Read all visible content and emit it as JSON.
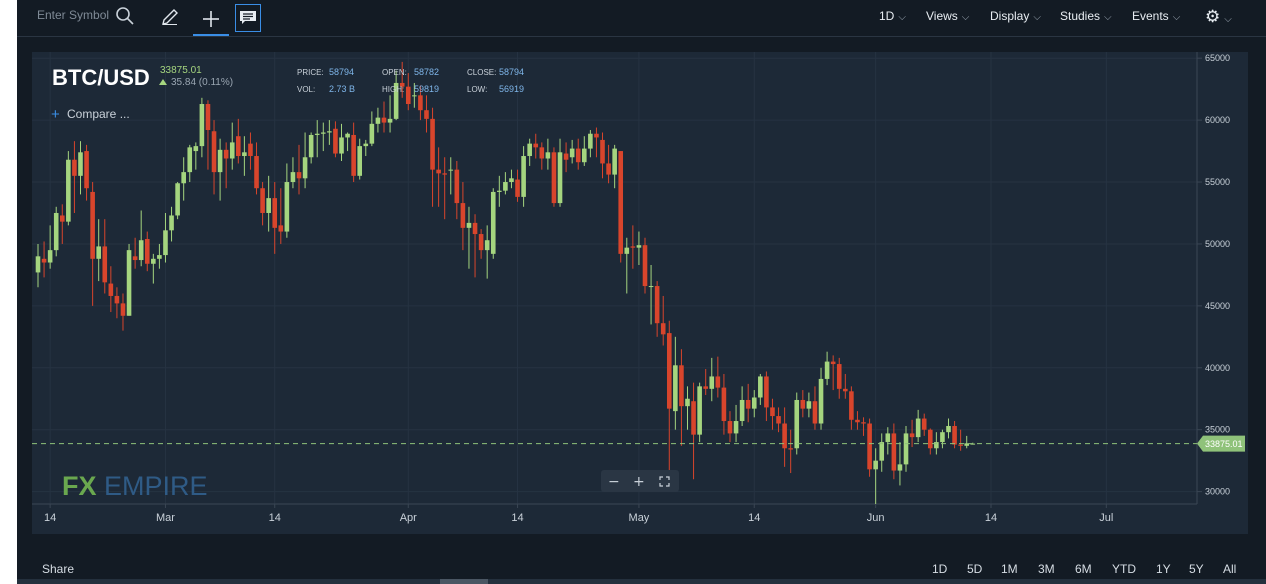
{
  "toolbar": {
    "search_placeholder": "Enter Symbol",
    "menus": [
      "1D",
      "Views",
      "Display",
      "Studies",
      "Events"
    ]
  },
  "header": {
    "symbol": "BTC/USD",
    "last_price": "33875.01",
    "change": "35.84 (0.11%)",
    "compare_label": "Compare ...",
    "stats": {
      "price_label": "PRICE:",
      "price": "58794",
      "vol_label": "VOL:",
      "vol": "2.73 B",
      "open_label": "OPEN:",
      "open": "58782",
      "high_label": "HIGH:",
      "high": "59819",
      "close_label": "CLOSE:",
      "close": "58794",
      "low_label": "LOW:",
      "low": "56919"
    }
  },
  "watermark": {
    "fx": "FX",
    "empire": "EMPIRE"
  },
  "footer": {
    "share_label": "Share",
    "ranges": [
      "1D",
      "5D",
      "1M",
      "3M",
      "6M",
      "YTD",
      "1Y",
      "5Y",
      "All"
    ]
  },
  "colors": {
    "up": "#a5d57f",
    "down": "#d8452c",
    "price_line": "#8fc27a",
    "background": "#1d2937"
  },
  "chart_data": {
    "type": "candlestick",
    "x_tick_labels": [
      "14",
      "Mar",
      "14",
      "Apr",
      "14",
      "May",
      "14",
      "Jun",
      "14",
      "Jul"
    ],
    "y_ticks": [
      30000,
      35000,
      40000,
      45000,
      50000,
      55000,
      60000,
      65000
    ],
    "ylim": [
      29000,
      65500
    ],
    "current_price": 33875.01,
    "current_price_label": "33875.01",
    "grid": true,
    "candles": [
      {
        "o": 47700,
        "c": 49000,
        "h": 50000,
        "l": 46500
      },
      {
        "o": 48800,
        "c": 48500,
        "h": 50200,
        "l": 47300
      },
      {
        "o": 48500,
        "c": 49500,
        "h": 51500,
        "l": 48000
      },
      {
        "o": 49500,
        "c": 52500,
        "h": 53000,
        "l": 49000
      },
      {
        "o": 52300,
        "c": 51800,
        "h": 53200,
        "l": 50000
      },
      {
        "o": 51800,
        "c": 56800,
        "h": 57500,
        "l": 51500
      },
      {
        "o": 56800,
        "c": 55500,
        "h": 58300,
        "l": 52500
      },
      {
        "o": 55500,
        "c": 57400,
        "h": 58300,
        "l": 54000
      },
      {
        "o": 57500,
        "c": 54500,
        "h": 58000,
        "l": 53500
      },
      {
        "o": 54200,
        "c": 48800,
        "h": 55000,
        "l": 45000
      },
      {
        "o": 48800,
        "c": 49800,
        "h": 52000,
        "l": 47000
      },
      {
        "o": 49800,
        "c": 46900,
        "h": 52000,
        "l": 46000
      },
      {
        "o": 46800,
        "c": 45800,
        "h": 48200,
        "l": 44500
      },
      {
        "o": 45800,
        "c": 45200,
        "h": 46500,
        "l": 44000
      },
      {
        "o": 45200,
        "c": 44200,
        "h": 46000,
        "l": 43000
      },
      {
        "o": 44200,
        "c": 49500,
        "h": 50000,
        "l": 44200
      },
      {
        "o": 49000,
        "c": 48700,
        "h": 50500,
        "l": 48000
      },
      {
        "o": 48700,
        "c": 50300,
        "h": 52700,
        "l": 48200
      },
      {
        "o": 50400,
        "c": 48400,
        "h": 51000,
        "l": 47800
      },
      {
        "o": 48400,
        "c": 48800,
        "h": 49200,
        "l": 46800
      },
      {
        "o": 48800,
        "c": 49100,
        "h": 50000,
        "l": 48000
      },
      {
        "o": 49100,
        "c": 51100,
        "h": 52500,
        "l": 48500
      },
      {
        "o": 51100,
        "c": 52300,
        "h": 53000,
        "l": 50200
      },
      {
        "o": 52300,
        "c": 54900,
        "h": 55000,
        "l": 52000
      },
      {
        "o": 54900,
        "c": 55800,
        "h": 57000,
        "l": 53500
      },
      {
        "o": 55800,
        "c": 57800,
        "h": 58000,
        "l": 55000
      },
      {
        "o": 57500,
        "c": 57900,
        "h": 58200,
        "l": 56000
      },
      {
        "o": 57900,
        "c": 61300,
        "h": 61800,
        "l": 57000
      },
      {
        "o": 61300,
        "c": 59200,
        "h": 61600,
        "l": 56000
      },
      {
        "o": 59100,
        "c": 55800,
        "h": 60000,
        "l": 54000
      },
      {
        "o": 55800,
        "c": 57600,
        "h": 58500,
        "l": 53500
      },
      {
        "o": 57600,
        "c": 56900,
        "h": 58200,
        "l": 54500
      },
      {
        "o": 56900,
        "c": 58200,
        "h": 59800,
        "l": 56000
      },
      {
        "o": 58700,
        "c": 57100,
        "h": 60100,
        "l": 56500
      },
      {
        "o": 57100,
        "c": 57400,
        "h": 58700,
        "l": 55500
      },
      {
        "o": 58100,
        "c": 57100,
        "h": 59000,
        "l": 56000
      },
      {
        "o": 57100,
        "c": 54500,
        "h": 58200,
        "l": 54000
      },
      {
        "o": 54500,
        "c": 52500,
        "h": 55000,
        "l": 51500
      },
      {
        "o": 52500,
        "c": 53700,
        "h": 55500,
        "l": 51000
      },
      {
        "o": 53700,
        "c": 51300,
        "h": 55000,
        "l": 49200
      },
      {
        "o": 51500,
        "c": 51000,
        "h": 54500,
        "l": 50000
      },
      {
        "o": 51000,
        "c": 55000,
        "h": 56500,
        "l": 50500
      },
      {
        "o": 55000,
        "c": 55800,
        "h": 57000,
        "l": 54500
      },
      {
        "o": 55800,
        "c": 55300,
        "h": 58000,
        "l": 54000
      },
      {
        "o": 55300,
        "c": 57000,
        "h": 59000,
        "l": 54500
      },
      {
        "o": 57000,
        "c": 58800,
        "h": 59000,
        "l": 56500
      },
      {
        "o": 58800,
        "c": 58900,
        "h": 60000,
        "l": 57000
      },
      {
        "o": 58900,
        "c": 59000,
        "h": 59800,
        "l": 57500
      },
      {
        "o": 59000,
        "c": 59100,
        "h": 60000,
        "l": 58000
      },
      {
        "o": 59300,
        "c": 57300,
        "h": 59900,
        "l": 57000
      },
      {
        "o": 57300,
        "c": 58600,
        "h": 59700,
        "l": 56700
      },
      {
        "o": 58600,
        "c": 58900,
        "h": 59000,
        "l": 57500
      },
      {
        "o": 58800,
        "c": 55500,
        "h": 59800,
        "l": 55000
      },
      {
        "o": 55500,
        "c": 57900,
        "h": 58500,
        "l": 55200
      },
      {
        "o": 57900,
        "c": 58100,
        "h": 58400,
        "l": 57100
      },
      {
        "o": 58100,
        "c": 59700,
        "h": 60700,
        "l": 57900
      },
      {
        "o": 59700,
        "c": 60200,
        "h": 61000,
        "l": 59000
      },
      {
        "o": 60200,
        "c": 59800,
        "h": 61500,
        "l": 59000
      },
      {
        "o": 59800,
        "c": 60100,
        "h": 62000,
        "l": 59000
      },
      {
        "o": 60100,
        "c": 63000,
        "h": 64000,
        "l": 60000
      },
      {
        "o": 63000,
        "c": 62700,
        "h": 64700,
        "l": 61800
      },
      {
        "o": 62700,
        "c": 61300,
        "h": 63800,
        "l": 60800
      },
      {
        "o": 62000,
        "c": 62000,
        "h": 63000,
        "l": 61000
      },
      {
        "o": 62000,
        "c": 60800,
        "h": 62800,
        "l": 60000
      },
      {
        "o": 60800,
        "c": 60100,
        "h": 62000,
        "l": 59000
      },
      {
        "o": 60100,
        "c": 56000,
        "h": 61000,
        "l": 53000
      },
      {
        "o": 56000,
        "c": 55700,
        "h": 57800,
        "l": 53000
      },
      {
        "o": 55700,
        "c": 55600,
        "h": 57000,
        "l": 52000
      },
      {
        "o": 56000,
        "c": 56000,
        "h": 57000,
        "l": 54000
      },
      {
        "o": 56000,
        "c": 53300,
        "h": 56700,
        "l": 52000
      },
      {
        "o": 53300,
        "c": 51300,
        "h": 55000,
        "l": 49500
      },
      {
        "o": 51300,
        "c": 51700,
        "h": 53000,
        "l": 48000
      },
      {
        "o": 51700,
        "c": 50800,
        "h": 52400,
        "l": 47300
      },
      {
        "o": 50800,
        "c": 49500,
        "h": 51200,
        "l": 48800
      },
      {
        "o": 49500,
        "c": 50300,
        "h": 51500,
        "l": 47200
      },
      {
        "o": 49200,
        "c": 54200,
        "h": 54500,
        "l": 48800
      },
      {
        "o": 54200,
        "c": 54300,
        "h": 55500,
        "l": 53000
      },
      {
        "o": 54300,
        "c": 55000,
        "h": 55800,
        "l": 54000
      },
      {
        "o": 55000,
        "c": 55300,
        "h": 56000,
        "l": 54500
      },
      {
        "o": 55200,
        "c": 53800,
        "h": 56000,
        "l": 53400
      },
      {
        "o": 53800,
        "c": 57100,
        "h": 57900,
        "l": 53000
      },
      {
        "o": 57100,
        "c": 58100,
        "h": 58500,
        "l": 56300
      },
      {
        "o": 58100,
        "c": 57800,
        "h": 58900,
        "l": 56900
      },
      {
        "o": 57800,
        "c": 56900,
        "h": 58200,
        "l": 56000
      },
      {
        "o": 56900,
        "c": 57400,
        "h": 58500,
        "l": 56000
      },
      {
        "o": 57400,
        "c": 53300,
        "h": 57800,
        "l": 53000
      },
      {
        "o": 53300,
        "c": 57400,
        "h": 58500,
        "l": 53000
      },
      {
        "o": 57300,
        "c": 56800,
        "h": 58200,
        "l": 55800
      },
      {
        "o": 57000,
        "c": 57700,
        "h": 58400,
        "l": 56500
      },
      {
        "o": 57700,
        "c": 56600,
        "h": 58500,
        "l": 56000
      },
      {
        "o": 56600,
        "c": 57700,
        "h": 58700,
        "l": 56300
      },
      {
        "o": 57700,
        "c": 58900,
        "h": 59200,
        "l": 57000
      },
      {
        "o": 58900,
        "c": 58600,
        "h": 59400,
        "l": 57000
      },
      {
        "o": 58400,
        "c": 56500,
        "h": 59000,
        "l": 55300
      },
      {
        "o": 56500,
        "c": 55600,
        "h": 58000,
        "l": 54900
      },
      {
        "o": 55600,
        "c": 57700,
        "h": 58000,
        "l": 54500
      },
      {
        "o": 57500,
        "c": 49200,
        "h": 57500,
        "l": 48500
      },
      {
        "o": 49200,
        "c": 49700,
        "h": 50500,
        "l": 46000
      },
      {
        "o": 49800,
        "c": 49700,
        "h": 51500,
        "l": 48000
      },
      {
        "o": 49700,
        "c": 49900,
        "h": 51000,
        "l": 48300
      },
      {
        "o": 49900,
        "c": 46600,
        "h": 50500,
        "l": 46000
      },
      {
        "o": 46600,
        "c": 46600,
        "h": 48300,
        "l": 43500
      },
      {
        "o": 46600,
        "c": 43600,
        "h": 47000,
        "l": 42500
      },
      {
        "o": 43600,
        "c": 42700,
        "h": 45800,
        "l": 41800
      },
      {
        "o": 42800,
        "c": 36700,
        "h": 43800,
        "l": 30000
      },
      {
        "o": 36500,
        "c": 40200,
        "h": 42500,
        "l": 35000
      },
      {
        "o": 40200,
        "c": 36900,
        "h": 41500,
        "l": 33700
      },
      {
        "o": 36900,
        "c": 37500,
        "h": 38500,
        "l": 35000
      },
      {
        "o": 37300,
        "c": 34600,
        "h": 38800,
        "l": 31000
      },
      {
        "o": 34600,
        "c": 38500,
        "h": 38800,
        "l": 34000
      },
      {
        "o": 38500,
        "c": 38300,
        "h": 39900,
        "l": 37800
      },
      {
        "o": 38300,
        "c": 39300,
        "h": 40800,
        "l": 37300
      },
      {
        "o": 39300,
        "c": 38400,
        "h": 40900,
        "l": 37600
      },
      {
        "o": 38400,
        "c": 35700,
        "h": 39500,
        "l": 34600
      },
      {
        "o": 35700,
        "c": 34700,
        "h": 36500,
        "l": 34000
      },
      {
        "o": 34700,
        "c": 35700,
        "h": 37000,
        "l": 34000
      },
      {
        "o": 35700,
        "c": 37400,
        "h": 38500,
        "l": 35300
      },
      {
        "o": 37400,
        "c": 36700,
        "h": 38700,
        "l": 35600
      },
      {
        "o": 36700,
        "c": 37600,
        "h": 38200,
        "l": 36000
      },
      {
        "o": 37600,
        "c": 39300,
        "h": 39500,
        "l": 37000
      },
      {
        "o": 39300,
        "c": 36800,
        "h": 39700,
        "l": 35700
      },
      {
        "o": 36800,
        "c": 36100,
        "h": 37500,
        "l": 35000
      },
      {
        "o": 36100,
        "c": 35500,
        "h": 36800,
        "l": 34800
      },
      {
        "o": 35500,
        "c": 33500,
        "h": 36800,
        "l": 32000
      },
      {
        "o": 33500,
        "c": 33400,
        "h": 35000,
        "l": 31500
      },
      {
        "o": 33500,
        "c": 37400,
        "h": 38000,
        "l": 33000
      },
      {
        "o": 37400,
        "c": 36700,
        "h": 38200,
        "l": 36000
      },
      {
        "o": 36700,
        "c": 37300,
        "h": 38000,
        "l": 36000
      },
      {
        "o": 37300,
        "c": 35500,
        "h": 38500,
        "l": 35000
      },
      {
        "o": 35500,
        "c": 39100,
        "h": 40000,
        "l": 35000
      },
      {
        "o": 39100,
        "c": 40500,
        "h": 41300,
        "l": 38600
      },
      {
        "o": 40500,
        "c": 40300,
        "h": 41000,
        "l": 38200
      },
      {
        "o": 40300,
        "c": 38300,
        "h": 40800,
        "l": 37500
      },
      {
        "o": 38300,
        "c": 38100,
        "h": 39500,
        "l": 37500
      },
      {
        "o": 38100,
        "c": 35800,
        "h": 38500,
        "l": 35000
      },
      {
        "o": 35800,
        "c": 35600,
        "h": 36500,
        "l": 35000
      },
      {
        "o": 35600,
        "c": 35500,
        "h": 36000,
        "l": 34500
      },
      {
        "o": 35500,
        "c": 31800,
        "h": 35900,
        "l": 31200
      },
      {
        "o": 31800,
        "c": 32500,
        "h": 33500,
        "l": 29000
      },
      {
        "o": 32500,
        "c": 34000,
        "h": 34700,
        "l": 31600
      },
      {
        "o": 34000,
        "c": 34700,
        "h": 35200,
        "l": 33000
      },
      {
        "o": 34700,
        "c": 31700,
        "h": 35500,
        "l": 31000
      },
      {
        "o": 31700,
        "c": 32200,
        "h": 34000,
        "l": 30500
      },
      {
        "o": 32200,
        "c": 34700,
        "h": 35300,
        "l": 31600
      },
      {
        "o": 34700,
        "c": 34400,
        "h": 35800,
        "l": 33600
      },
      {
        "o": 34400,
        "c": 35900,
        "h": 36600,
        "l": 34000
      },
      {
        "o": 35900,
        "c": 35000,
        "h": 36300,
        "l": 34500
      },
      {
        "o": 35000,
        "c": 33500,
        "h": 35100,
        "l": 33000
      },
      {
        "o": 33500,
        "c": 34000,
        "h": 34800,
        "l": 33000
      },
      {
        "o": 34000,
        "c": 34800,
        "h": 35000,
        "l": 33500
      },
      {
        "o": 34800,
        "c": 35300,
        "h": 35900,
        "l": 34300
      },
      {
        "o": 35300,
        "c": 33800,
        "h": 35700,
        "l": 33500
      },
      {
        "o": 33800,
        "c": 33700,
        "h": 35000,
        "l": 33300
      },
      {
        "o": 33700,
        "c": 33900,
        "h": 34500,
        "l": 33500
      },
      {
        "o": 33840,
        "c": 33875,
        "h": 33950,
        "l": 33800
      }
    ]
  }
}
